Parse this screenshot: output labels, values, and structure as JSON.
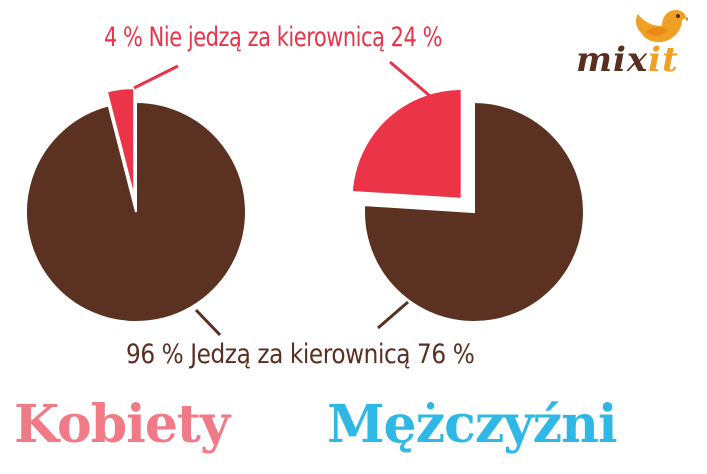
{
  "colors": {
    "eat": "#5b3122",
    "not_eat": "#ec3448",
    "women": "#f07a86",
    "men": "#2fb8e6",
    "logo_mix": "#5a2f22",
    "logo_it": "#f0a024"
  },
  "labels": {
    "top_callout": "4 % Nie jedzą za kierownicą 24 %",
    "bottom_callout": "96 % Jedzą za kierownicą 76 %",
    "women": "Kobiety",
    "men": "Mężczyźni"
  },
  "logo": {
    "mix": "mix",
    "it": "it",
    "icon": "bird-icon"
  },
  "chart_data": [
    {
      "type": "pie",
      "title": "Kobiety",
      "slices": [
        {
          "label": "Nie jedzą za kierownicą",
          "value": 4
        },
        {
          "label": "Jedzą za kierownicą",
          "value": 96
        }
      ],
      "unit": "%"
    },
    {
      "type": "pie",
      "title": "Mężczyźni",
      "slices": [
        {
          "label": "Nie jedzą za kierownicą",
          "value": 24
        },
        {
          "label": "Jedzą za kierownicą",
          "value": 76
        }
      ],
      "unit": "%"
    }
  ]
}
